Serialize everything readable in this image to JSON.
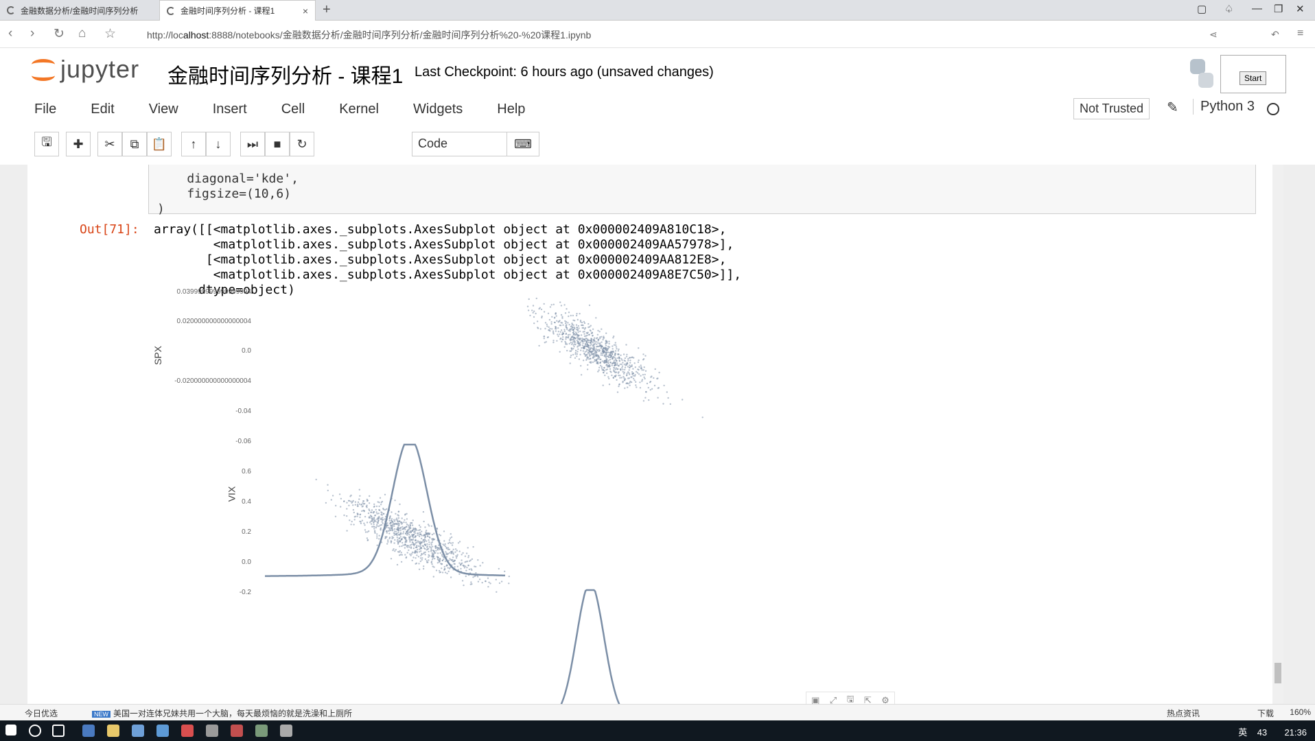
{
  "browser": {
    "tabs": [
      {
        "label": "金融数据分析/金融时间序列分析"
      },
      {
        "label": "金融时间序列分析 - 课程1"
      }
    ],
    "url_prefix": "http://loc",
    "url_host": "alhost",
    "url_rest": ":8888/notebooks/金融数据分析/金融时间序列分析/金融时间序列分析%20-%20课程1.ipynb"
  },
  "jupyter": {
    "logo_text": "jupyter",
    "title": "金融时间序列分析 - 课程1",
    "checkpoint": "Last Checkpoint: 6 hours ago (unsaved changes)",
    "start_label": "Start",
    "menu": [
      "File",
      "Edit",
      "View",
      "Insert",
      "Cell",
      "Kernel",
      "Widgets",
      "Help"
    ],
    "trust": "Not Trusted",
    "kernel": "Python 3",
    "cell_type": "Code"
  },
  "cell": {
    "code_lines": "    diagonal='kde',\n    figsize=(10,6)\n)",
    "out_prompt": "Out[71]:",
    "out_lines": "array([[<matplotlib.axes._subplots.AxesSubplot object at 0x000002409A810C18>,\n        <matplotlib.axes._subplots.AxesSubplot object at 0x000002409AA57978>],\n       [<matplotlib.axes._subplots.AxesSubplot object at 0x000002409AA812E8>,\n        <matplotlib.axes._subplots.AxesSubplot object at 0x000002409A8E7C50>]],\n      dtype=object)"
  },
  "chart_data": {
    "type": "scatter",
    "title": "",
    "panels": [
      {
        "row": "SPX",
        "col": "SPX",
        "kind": "kde"
      },
      {
        "row": "SPX",
        "col": "VIX",
        "kind": "scatter"
      },
      {
        "row": "VIX",
        "col": "SPX",
        "kind": "scatter"
      },
      {
        "row": "VIX",
        "col": "VIX",
        "kind": "kde"
      }
    ],
    "ylabels": [
      "SPX",
      "VIX"
    ],
    "spx_ticks": [
      "0.039999999999999994",
      "0.020000000000000004",
      "0.0",
      "-0.020000000000000004",
      "-0.04",
      "-0.06"
    ],
    "vix_ticks": [
      "0.6",
      "0.4",
      "0.2",
      "0.0",
      "-0.2"
    ],
    "color": "#7b8ea6",
    "grid": false
  },
  "statusbar": {
    "left": "今日优选",
    "news_tag": "NEW",
    "news": "美国一对连体兄妹共用一个大脑，每天最烦恼的就是洗澡和上厕所",
    "right": "热点资讯",
    "download": "下载",
    "zoom": "160%"
  },
  "taskbar": {
    "ime": "英",
    "badge": "43",
    "time": "21:36"
  }
}
